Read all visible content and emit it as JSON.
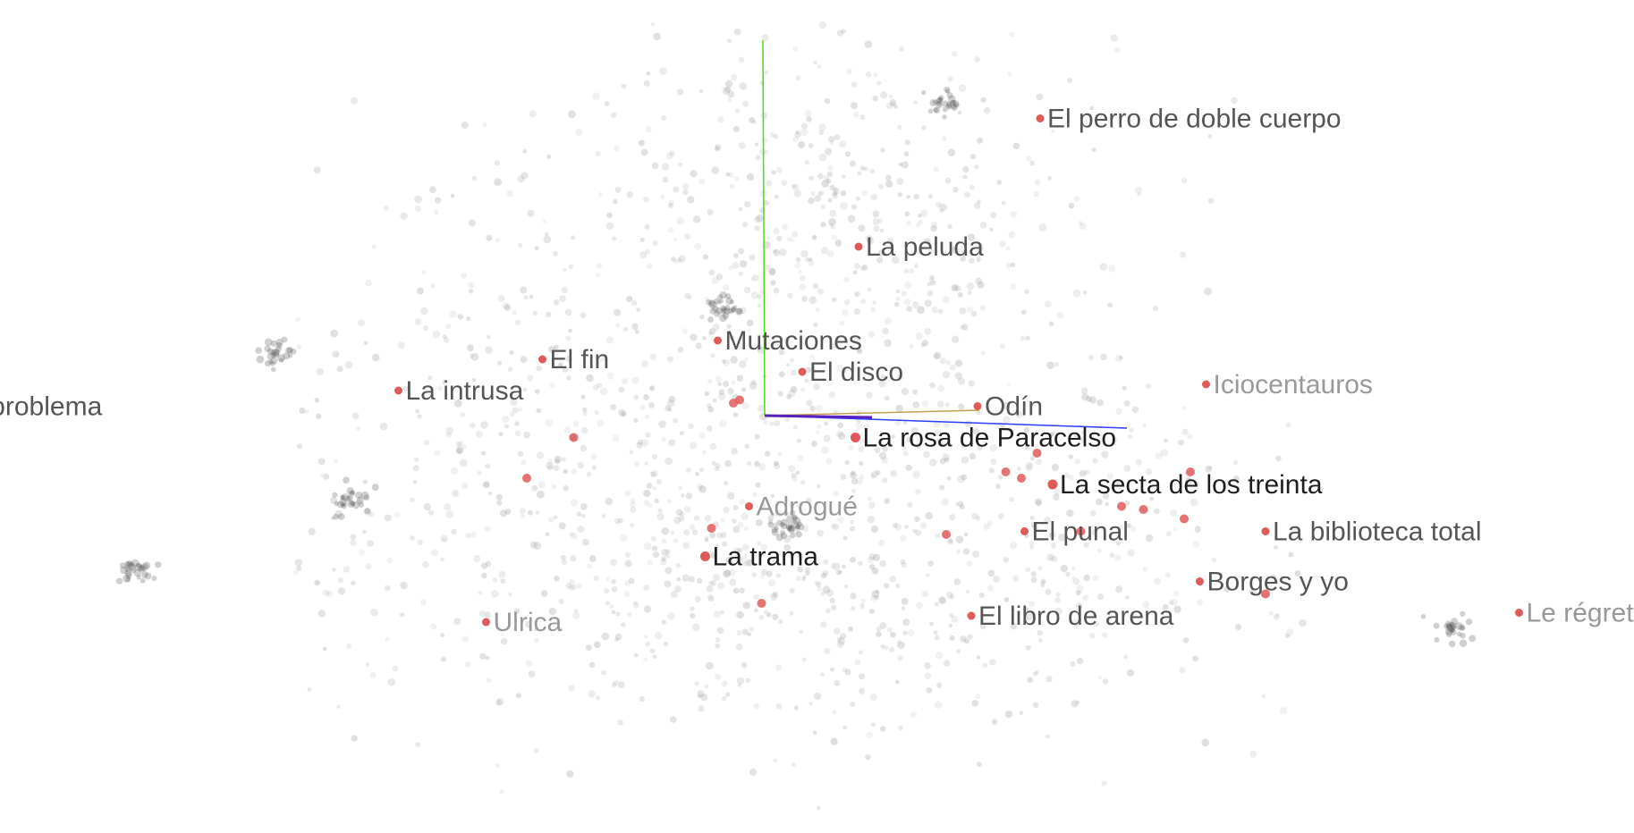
{
  "chart_data": {
    "type": "scatter",
    "title": "",
    "xlabel": "",
    "ylabel": "",
    "grid": false,
    "legend": "none",
    "axes_3d": {
      "x_color": "#2a3cff",
      "y_color": "#52d81c",
      "z_color": "#c2a050",
      "origin_color": "#5a1fbf"
    },
    "colors": {
      "background_point": "#9a9a9a",
      "highlight_point": "#e05a5a",
      "label_dark": "#1f1f1f",
      "label_mid": "#555555",
      "label_light": "#999999"
    },
    "labeled_points": [
      {
        "label": "El perro de doble cuerpo",
        "x": 0.88,
        "y": 0.95,
        "tone": "mid"
      },
      {
        "label": "La peluda",
        "x": 0.3,
        "y": 0.54,
        "tone": "mid"
      },
      {
        "label": "Mutaciones",
        "x": -0.15,
        "y": 0.24,
        "tone": "mid"
      },
      {
        "label": "El fin",
        "x": -0.71,
        "y": 0.18,
        "tone": "mid"
      },
      {
        "label": "El disco",
        "x": 0.12,
        "y": 0.14,
        "tone": "mid"
      },
      {
        "label": "Iciocentauros",
        "x": 1.41,
        "y": 0.1,
        "tone": "light"
      },
      {
        "label": "La intrusa",
        "x": -1.17,
        "y": 0.08,
        "tone": "mid"
      },
      {
        "label": "Un problema",
        "x": -2.63,
        "y": 0.03,
        "tone": "mid"
      },
      {
        "label": "Odín",
        "x": 0.68,
        "y": 0.03,
        "tone": "mid"
      },
      {
        "label": "La rosa de Paracelso",
        "x": 0.29,
        "y": -0.07,
        "tone": "dark"
      },
      {
        "label": "La secta de los treinta",
        "x": 0.92,
        "y": -0.22,
        "tone": "dark"
      },
      {
        "label": "Adrogué",
        "x": -0.05,
        "y": -0.29,
        "tone": "light"
      },
      {
        "label": "El punal",
        "x": 0.83,
        "y": -0.37,
        "tone": "mid"
      },
      {
        "label": "La biblioteca total",
        "x": 1.6,
        "y": -0.37,
        "tone": "mid"
      },
      {
        "label": "La trama",
        "x": -0.19,
        "y": -0.45,
        "tone": "dark"
      },
      {
        "label": "Borges y yo",
        "x": 1.39,
        "y": -0.53,
        "tone": "mid"
      },
      {
        "label": "El libro de arena",
        "x": 0.66,
        "y": -0.64,
        "tone": "mid"
      },
      {
        "label": "Le régret d'Héraclite",
        "x": 2.41,
        "y": -0.63,
        "tone": "light"
      },
      {
        "label": "Ulrica",
        "x": -0.89,
        "y": -0.66,
        "tone": "light"
      }
    ],
    "highlight_points": [
      {
        "x": -0.1,
        "y": 0.04
      },
      {
        "x": -0.08,
        "y": 0.05
      },
      {
        "x": -0.61,
        "y": -0.07
      },
      {
        "x": -0.76,
        "y": -0.2
      },
      {
        "x": 0.87,
        "y": -0.12
      },
      {
        "x": 0.77,
        "y": -0.18
      },
      {
        "x": 0.82,
        "y": -0.2
      },
      {
        "x": 1.36,
        "y": -0.18
      },
      {
        "x": 1.14,
        "y": -0.29
      },
      {
        "x": 1.21,
        "y": -0.3
      },
      {
        "x": 1.34,
        "y": -0.33
      },
      {
        "x": 1.01,
        "y": -0.37
      },
      {
        "x": -0.17,
        "y": -0.36
      },
      {
        "x": 0.58,
        "y": -0.38
      },
      {
        "x": 1.6,
        "y": -0.57
      },
      {
        "x": -0.01,
        "y": -0.6
      }
    ],
    "background_points": {
      "count": 1900,
      "clusters": [
        {
          "cx": 0.2,
          "cy": 0.7,
          "sx": 0.45,
          "sy": 0.3,
          "w": 0.22
        },
        {
          "cx": -0.35,
          "cy": 0.15,
          "sx": 0.75,
          "sy": 0.35,
          "w": 0.18
        },
        {
          "cx": -0.55,
          "cy": -0.35,
          "sx": 0.9,
          "sy": 0.35,
          "w": 0.25
        },
        {
          "cx": 0.6,
          "cy": -0.35,
          "sx": 0.75,
          "sy": 0.3,
          "w": 0.2
        },
        {
          "cx": 0.1,
          "cy": -0.6,
          "sx": 0.5,
          "sy": 0.22,
          "w": 0.1
        },
        {
          "cx": 2.25,
          "cy": -0.68,
          "sx": 0.3,
          "sy": 0.08,
          "w": 0.05
        }
      ],
      "dense_spots": [
        {
          "x": 0.57,
          "y": 1.0
        },
        {
          "x": -0.13,
          "y": 0.35
        },
        {
          "x": -1.55,
          "y": 0.2
        },
        {
          "x": 0.08,
          "y": -0.35
        },
        {
          "x": -1.33,
          "y": -0.27
        },
        {
          "x": -2.0,
          "y": -0.5
        },
        {
          "x": 2.2,
          "y": -0.68
        }
      ]
    }
  }
}
